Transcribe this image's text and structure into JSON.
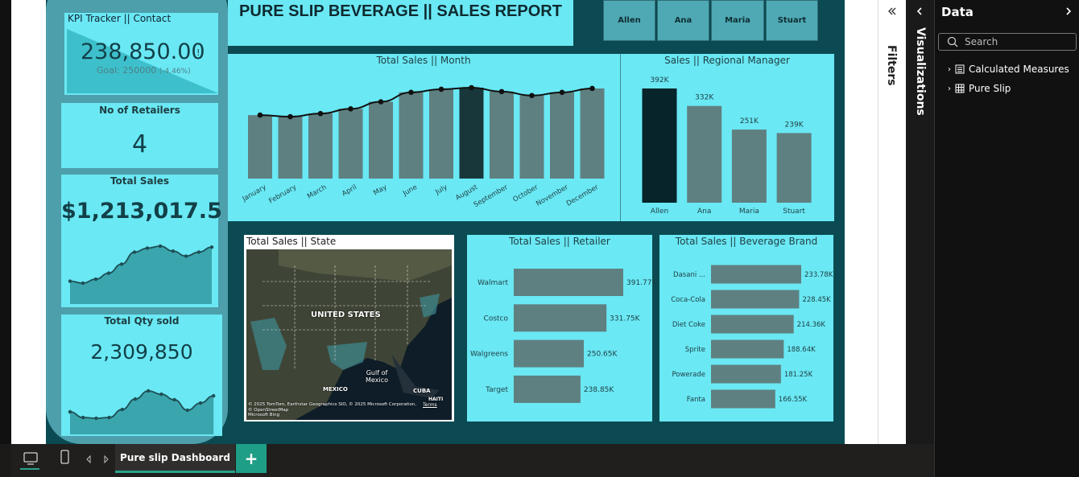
{
  "report": {
    "title": "PURE SLIP BEVERAGE || SALES REPORT",
    "slicer": [
      "Allen",
      "Ana",
      "Maria",
      "Stuart"
    ]
  },
  "cards": {
    "kpi": {
      "title": "KPI Tracker || Contact",
      "value": "238,850.00",
      "alert": "!",
      "goal": "Goal: 250000",
      "change": "(-4.46%)"
    },
    "retailers": {
      "title": "No of Retailers",
      "value": "4"
    },
    "sales": {
      "title": "Total Sales",
      "value": "$1,213,017.5"
    },
    "qty": {
      "title": "Total Qty sold",
      "value": "2,309,850"
    }
  },
  "chart_data": [
    {
      "type": "bar",
      "title": "Total Sales || Month",
      "categories": [
        "January",
        "February",
        "March",
        "April",
        "May",
        "June",
        "July",
        "August",
        "September",
        "October",
        "November",
        "December"
      ],
      "values": [
        81000,
        79000,
        83000,
        89000,
        98000,
        110000,
        114000,
        116000,
        111000,
        106000,
        110000,
        115000
      ],
      "color": "#5f8081",
      "highlight": "August",
      "highlight_color": "#17373b",
      "line": true,
      "line_color": "#111111"
    },
    {
      "type": "bar",
      "title": "Sales || Regional Manager",
      "categories": [
        "Allen",
        "Ana",
        "Maria",
        "Stuart"
      ],
      "values": [
        392,
        332,
        251,
        239
      ],
      "value_labels": [
        "392K",
        "332K",
        "251K",
        "239K"
      ],
      "color": "#5f8081",
      "highlight": "Allen",
      "highlight_color": "#06242a"
    },
    {
      "type": "bar",
      "horizontal": true,
      "title": "Total Sales || Retailer",
      "categories": [
        "Walmart",
        "Costco",
        "Walgreens",
        "Target"
      ],
      "values": [
        391.77,
        331.75,
        250.65,
        238.85
      ],
      "value_labels": [
        "391.77K",
        "331.75K",
        "250.65K",
        "238.85K"
      ],
      "color": "#5f8081"
    },
    {
      "type": "bar",
      "horizontal": true,
      "title": "Total Sales || Beverage Brand",
      "categories": [
        "Dasani ...",
        "Coca-Cola",
        "Diet Coke",
        "Sprite",
        "Powerade",
        "Fanta"
      ],
      "values": [
        233.78,
        228.45,
        214.36,
        188.64,
        181.25,
        166.55
      ],
      "value_labels": [
        "233.78K",
        "228.45K",
        "214.36K",
        "188.64K",
        "181.25K",
        "166.55K"
      ],
      "color": "#5f8081"
    },
    {
      "type": "area",
      "values": [
        151000,
        113000,
        108000,
        113000,
        167000,
        237000,
        291000,
        269000,
        232000,
        162000,
        210000,
        258000
      ],
      "color": "#3aa5ad",
      "line_color": "#1d4f55"
    }
  ],
  "map": {
    "title": "Total Sales || State",
    "labels": [
      "UNITED STATES",
      "Gulf of Mexico",
      "MEXICO",
      "CUBA",
      "HAITI"
    ],
    "attribution": "© 2025 TomTom, Earthstar Geographics SIO, © 2025 Microsoft Corporation, © OpenStreetMap",
    "terms": "Terms",
    "provider": "Microsoft Bing"
  },
  "panes": {
    "filters": "Filters",
    "visualizations": "Visualizations",
    "data": "Data",
    "search": "Search",
    "tree": [
      "Calculated Measures",
      "Pure Slip"
    ]
  },
  "tabs": {
    "page": "Pure slip Dashboard",
    "add": "+"
  }
}
